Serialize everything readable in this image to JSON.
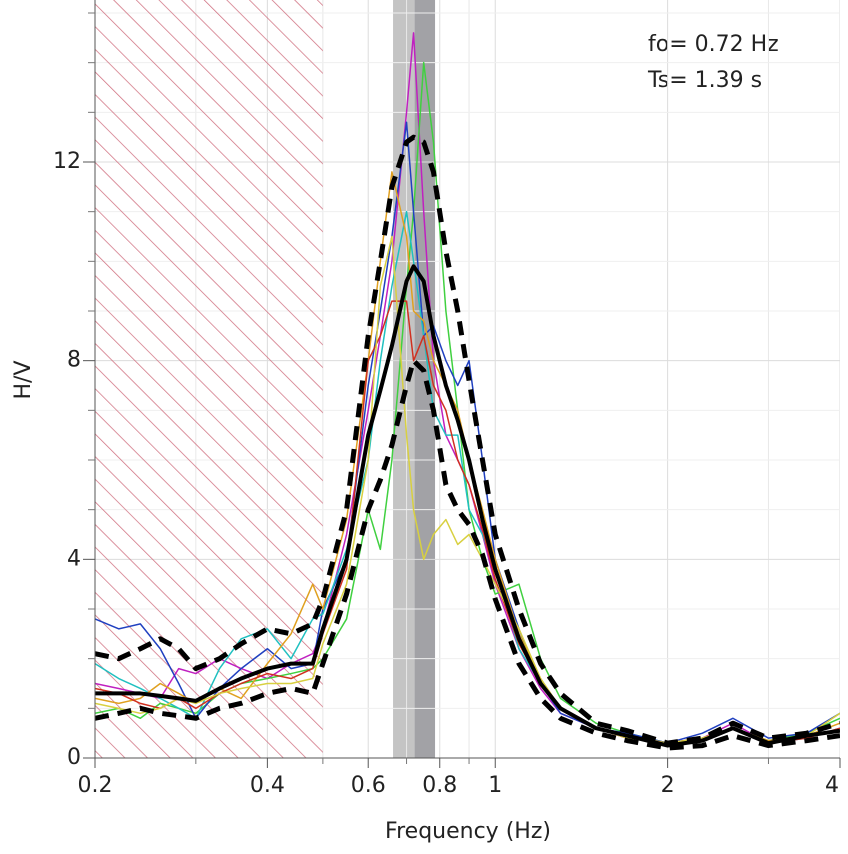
{
  "chart_data": {
    "type": "line",
    "xlabel": "Frequency (Hz)",
    "ylabel": "H/V",
    "annotations": [
      "fo= 0.72 Hz",
      "Ts= 1.39 s"
    ],
    "xscale": "log",
    "grid": true,
    "xlim": [
      0.2,
      4
    ],
    "ylim": [
      0,
      15
    ],
    "xticks": [
      0.2,
      0.4,
      0.6,
      0.8,
      1,
      2,
      4
    ],
    "xminorticks": [
      0.3,
      0.5,
      0.7,
      0.9,
      3
    ],
    "yticks": [
      0,
      4,
      8,
      12
    ],
    "yminorticks": [
      1,
      2,
      3,
      5,
      6,
      7,
      9,
      10,
      11,
      13,
      14,
      15
    ],
    "excluded_range": [
      0.2,
      0.5
    ],
    "excluded_color": "#d07080",
    "bands": [
      {
        "from": 0.663,
        "to": 0.723,
        "color": "#c4c4c4"
      },
      {
        "from": 0.723,
        "to": 0.785,
        "color": "#a2a2a6"
      }
    ],
    "x": [
      0.2,
      0.22,
      0.24,
      0.26,
      0.28,
      0.3,
      0.33,
      0.36,
      0.4,
      0.44,
      0.48,
      0.5,
      0.55,
      0.6,
      0.63,
      0.66,
      0.7,
      0.72,
      0.75,
      0.78,
      0.82,
      0.86,
      0.9,
      0.95,
      1,
      1.1,
      1.2,
      1.3,
      1.5,
      1.7,
      2,
      2.3,
      2.6,
      3,
      3.5,
      4
    ],
    "series": [
      {
        "color": "#c020c0",
        "width": 1.5,
        "values": [
          1.5,
          1.4,
          1.3,
          1.2,
          1.8,
          1.7,
          2.0,
          1.8,
          1.6,
          1.9,
          2.1,
          2.6,
          4.5,
          7.0,
          8.5,
          10.0,
          13.0,
          14.6,
          11.0,
          8.0,
          6.5,
          6.0,
          5.5,
          4.5,
          3.5,
          2.2,
          1.4,
          0.9,
          0.6,
          0.4,
          0.3,
          0.4,
          0.7,
          0.3,
          0.4,
          0.6
        ]
      },
      {
        "color": "#40d040",
        "width": 1.5,
        "values": [
          0.9,
          1.0,
          0.8,
          1.1,
          1.0,
          0.9,
          1.3,
          1.5,
          1.6,
          1.7,
          1.8,
          2.0,
          2.8,
          5.0,
          4.2,
          6.0,
          9.5,
          11.0,
          14.0,
          12.4,
          9.0,
          7.0,
          5.0,
          4.0,
          3.3,
          3.5,
          2.0,
          1.2,
          0.7,
          0.5,
          0.3,
          0.35,
          0.6,
          0.35,
          0.5,
          0.8
        ]
      },
      {
        "color": "#2040c0",
        "width": 1.5,
        "values": [
          2.8,
          2.6,
          2.7,
          2.2,
          1.5,
          0.8,
          1.4,
          1.8,
          2.2,
          1.8,
          1.9,
          3.0,
          4.0,
          7.5,
          9.0,
          10.5,
          12.8,
          11.0,
          8.5,
          8.7,
          8.0,
          7.5,
          8.0,
          6.0,
          4.0,
          2.6,
          1.5,
          0.9,
          0.6,
          0.5,
          0.3,
          0.5,
          0.8,
          0.4,
          0.5,
          0.9
        ]
      },
      {
        "color": "#20c0c0",
        "width": 1.5,
        "values": [
          1.9,
          1.6,
          1.4,
          1.2,
          1.0,
          0.8,
          1.8,
          2.4,
          2.6,
          2.0,
          2.8,
          2.9,
          4.2,
          6.0,
          8.0,
          9.5,
          11.0,
          10.0,
          8.5,
          7.0,
          6.5,
          6.5,
          5.0,
          4.5,
          3.8,
          2.2,
          1.5,
          1.0,
          0.6,
          0.45,
          0.3,
          0.4,
          0.6,
          0.3,
          0.4,
          0.6
        ]
      },
      {
        "color": "#e0a020",
        "width": 1.5,
        "values": [
          1.2,
          1.1,
          1.2,
          1.5,
          1.3,
          1.1,
          1.4,
          1.2,
          1.9,
          2.5,
          3.5,
          3.0,
          4.8,
          8.0,
          10.0,
          11.8,
          10.5,
          9.0,
          8.8,
          8.0,
          7.5,
          7.0,
          6.0,
          5.0,
          4.0,
          2.5,
          1.6,
          1.0,
          0.6,
          0.45,
          0.3,
          0.4,
          0.6,
          0.35,
          0.45,
          0.7
        ]
      },
      {
        "color": "#d03020",
        "width": 1.5,
        "values": [
          1.4,
          1.3,
          1.1,
          1.0,
          1.2,
          1.0,
          1.3,
          1.5,
          1.7,
          1.6,
          1.8,
          2.5,
          3.8,
          8.0,
          8.5,
          9.2,
          9.2,
          8.0,
          8.5,
          7.5,
          7.0,
          6.0,
          5.5,
          4.6,
          3.6,
          2.3,
          1.5,
          1.0,
          0.6,
          0.4,
          0.3,
          0.4,
          0.6,
          0.3,
          0.4,
          0.6
        ]
      },
      {
        "color": "#d8d040",
        "width": 1.5,
        "values": [
          1.1,
          1.0,
          0.9,
          1.0,
          1.2,
          1.1,
          1.3,
          1.4,
          1.5,
          1.5,
          1.6,
          2.3,
          3.5,
          6.0,
          9.5,
          10.5,
          6.5,
          5.0,
          4.0,
          4.5,
          4.8,
          4.3,
          4.5,
          4.0,
          3.5,
          2.6,
          1.6,
          1.0,
          0.6,
          0.4,
          0.3,
          0.4,
          0.6,
          0.3,
          0.45,
          0.9
        ]
      },
      {
        "color": "#000000",
        "width": 5,
        "style": "dashed",
        "values": [
          2.1,
          2.0,
          2.2,
          2.4,
          2.2,
          1.8,
          2.0,
          2.3,
          2.6,
          2.5,
          2.7,
          3.2,
          5.0,
          8.5,
          10.0,
          11.5,
          12.4,
          12.5,
          12.4,
          11.8,
          10.2,
          9.0,
          7.6,
          6.0,
          4.5,
          3.0,
          1.9,
          1.3,
          0.7,
          0.55,
          0.3,
          0.4,
          0.7,
          0.4,
          0.5,
          0.7
        ]
      },
      {
        "color": "#000000",
        "width": 5,
        "style": "dashed",
        "values": [
          0.8,
          0.9,
          1.0,
          0.9,
          0.85,
          0.8,
          1.0,
          1.1,
          1.3,
          1.4,
          1.3,
          1.9,
          3.3,
          5.0,
          5.6,
          6.3,
          7.5,
          8.0,
          7.8,
          7.0,
          5.5,
          5.0,
          4.7,
          4.1,
          3.2,
          1.9,
          1.2,
          0.8,
          0.5,
          0.35,
          0.2,
          0.25,
          0.45,
          0.25,
          0.35,
          0.45
        ]
      },
      {
        "color": "#000000",
        "width": 4,
        "style": "solid",
        "values": [
          1.3,
          1.3,
          1.3,
          1.25,
          1.2,
          1.15,
          1.4,
          1.6,
          1.8,
          1.9,
          1.9,
          2.6,
          4.0,
          6.5,
          7.4,
          8.3,
          9.6,
          9.9,
          9.6,
          8.5,
          7.5,
          6.8,
          6.0,
          4.8,
          3.8,
          2.4,
          1.5,
          1.0,
          0.6,
          0.45,
          0.25,
          0.35,
          0.6,
          0.3,
          0.45,
          0.55
        ]
      }
    ]
  }
}
